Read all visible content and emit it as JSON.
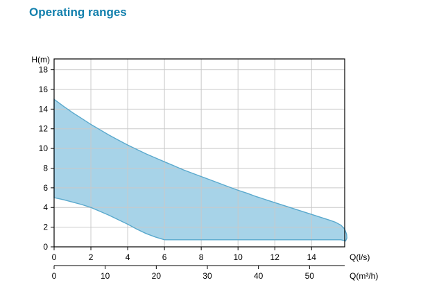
{
  "page": {
    "title": "Operating ranges"
  },
  "chart_data": {
    "type": "area",
    "title": "Operating ranges",
    "y_axis": {
      "label": "H(m)",
      "ticks": [
        0,
        2,
        4,
        6,
        8,
        10,
        12,
        14,
        16,
        18
      ],
      "lim": [
        0,
        19.1
      ]
    },
    "x_axis_primary": {
      "label": "Q(l/s)",
      "ticks": [
        0,
        2,
        4,
        6,
        8,
        10,
        12,
        14
      ],
      "lim": [
        0,
        15.8
      ]
    },
    "x_axis_secondary": {
      "label": "Q(m³/h)",
      "ticks": [
        0,
        10,
        20,
        30,
        40,
        50
      ],
      "m3h_per_ls": 3.6
    },
    "grid": "on",
    "region_units": "pairs of [Q_l_s, H_m] tracing the operating envelope outline",
    "region": [
      [
        0,
        15
      ],
      [
        0.5,
        14.3
      ],
      [
        1,
        13.65
      ],
      [
        1.5,
        13.05
      ],
      [
        2,
        12.45
      ],
      [
        2.5,
        11.9
      ],
      [
        3,
        11.35
      ],
      [
        3.5,
        10.85
      ],
      [
        4,
        10.35
      ],
      [
        4.5,
        9.9
      ],
      [
        5,
        9.45
      ],
      [
        5.5,
        9.05
      ],
      [
        6,
        8.65
      ],
      [
        6.5,
        8.25
      ],
      [
        7,
        7.85
      ],
      [
        7.5,
        7.5
      ],
      [
        8,
        7.15
      ],
      [
        8.5,
        6.8
      ],
      [
        9,
        6.45
      ],
      [
        9.5,
        6.1
      ],
      [
        10,
        5.75
      ],
      [
        10.5,
        5.45
      ],
      [
        11,
        5.1
      ],
      [
        11.5,
        4.8
      ],
      [
        12,
        4.5
      ],
      [
        12.5,
        4.2
      ],
      [
        13,
        3.9
      ],
      [
        13.5,
        3.6
      ],
      [
        14,
        3.3
      ],
      [
        14.5,
        3.0
      ],
      [
        15,
        2.7
      ],
      [
        15.3,
        2.5
      ],
      [
        15.6,
        2.2
      ],
      [
        15.8,
        1.8
      ],
      [
        15.9,
        1.3
      ],
      [
        15.92,
        0.9
      ],
      [
        15.85,
        0.6
      ],
      [
        15.6,
        0.72
      ],
      [
        15,
        0.72
      ],
      [
        6,
        0.72
      ],
      [
        5.5,
        1.0
      ],
      [
        5,
        1.35
      ],
      [
        4.5,
        1.8
      ],
      [
        4,
        2.3
      ],
      [
        3.5,
        2.75
      ],
      [
        3,
        3.2
      ],
      [
        2.5,
        3.6
      ],
      [
        2,
        4.0
      ],
      [
        1.5,
        4.3
      ],
      [
        1,
        4.55
      ],
      [
        0.5,
        4.8
      ],
      [
        0,
        5.0
      ]
    ],
    "colors": {
      "fill": "#a7d3e8",
      "outline": "#5aa9cd",
      "grid": "#c9c9c9",
      "axis": "#000000",
      "title": "#1380ad"
    }
  }
}
